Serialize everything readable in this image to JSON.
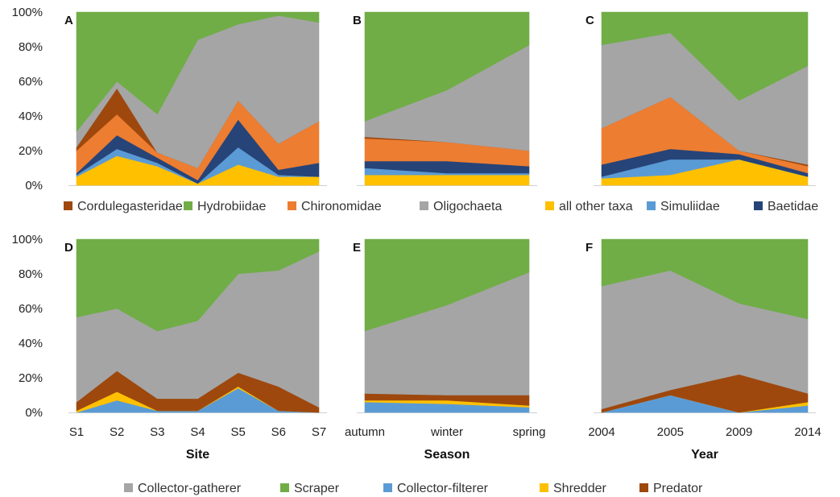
{
  "figure": {
    "y_ticks": [
      "0%",
      "20%",
      "40%",
      "60%",
      "80%",
      "100%"
    ],
    "x_axis_titles": [
      "Site",
      "Season",
      "Year"
    ]
  },
  "legends": {
    "taxa": [
      {
        "name": "Cordulegasteridae",
        "color": "#9e480e"
      },
      {
        "name": "Hydrobiidae",
        "color": "#70ad47"
      },
      {
        "name": "Chironomidae",
        "color": "#ed7d31"
      },
      {
        "name": "Oligochaeta",
        "color": "#a5a5a5"
      },
      {
        "name": "all other taxa",
        "color": "#ffc000"
      },
      {
        "name": "Simuliidae",
        "color": "#5b9bd5"
      },
      {
        "name": "Baetidae",
        "color": "#264478"
      }
    ],
    "feeding": [
      {
        "name": "Collector-gatherer",
        "color": "#a5a5a5"
      },
      {
        "name": "Scraper",
        "color": "#70ad47"
      },
      {
        "name": "Collector-filterer",
        "color": "#5b9bd5"
      },
      {
        "name": "Shredder",
        "color": "#ffc000"
      },
      {
        "name": "Predator",
        "color": "#9e480e"
      }
    ]
  },
  "chart_data": [
    {
      "panel": "A",
      "type": "area",
      "stacking": "percent",
      "categories": [
        "S1",
        "S2",
        "S3",
        "S4",
        "S5",
        "S6",
        "S7"
      ],
      "ylim": [
        0,
        100
      ],
      "series": [
        {
          "name": "all other taxa",
          "color": "#ffc000",
          "values": [
            5,
            17,
            11,
            1,
            12,
            5,
            5
          ]
        },
        {
          "name": "Simuliidae",
          "color": "#5b9bd5",
          "values": [
            1,
            4,
            2,
            0,
            10,
            1,
            0
          ]
        },
        {
          "name": "Baetidae",
          "color": "#264478",
          "values": [
            1,
            8,
            3,
            2,
            16,
            3,
            8
          ]
        },
        {
          "name": "Chironomidae",
          "color": "#ed7d31",
          "values": [
            13,
            12,
            3,
            7,
            11,
            15,
            24
          ]
        },
        {
          "name": "Cordulegasteridae",
          "color": "#9e480e",
          "values": [
            2,
            15,
            0,
            0,
            0,
            0,
            0
          ]
        },
        {
          "name": "Oligochaeta",
          "color": "#a5a5a5",
          "values": [
            9,
            4,
            22,
            74,
            44,
            74,
            57
          ]
        },
        {
          "name": "Hydrobiidae",
          "color": "#70ad47",
          "values": [
            69,
            40,
            59,
            16,
            7,
            2,
            6
          ]
        }
      ]
    },
    {
      "panel": "B",
      "type": "area",
      "stacking": "percent",
      "categories": [
        "autumn",
        "winter",
        "spring"
      ],
      "ylim": [
        0,
        100
      ],
      "series": [
        {
          "name": "all other taxa",
          "color": "#ffc000",
          "values": [
            6,
            6,
            6
          ]
        },
        {
          "name": "Simuliidae",
          "color": "#5b9bd5",
          "values": [
            4,
            1,
            1
          ]
        },
        {
          "name": "Baetidae",
          "color": "#264478",
          "values": [
            4,
            7,
            4
          ]
        },
        {
          "name": "Chironomidae",
          "color": "#ed7d31",
          "values": [
            13,
            11,
            9
          ]
        },
        {
          "name": "Cordulegasteridae",
          "color": "#9e480e",
          "values": [
            1,
            0,
            0
          ]
        },
        {
          "name": "Oligochaeta",
          "color": "#a5a5a5",
          "values": [
            9,
            30,
            61
          ]
        },
        {
          "name": "Hydrobiidae",
          "color": "#70ad47",
          "values": [
            63,
            45,
            19
          ]
        }
      ]
    },
    {
      "panel": "C",
      "type": "area",
      "stacking": "percent",
      "categories": [
        "2004",
        "2005",
        "2009",
        "2014"
      ],
      "ylim": [
        0,
        100
      ],
      "series": [
        {
          "name": "all other taxa",
          "color": "#ffc000",
          "values": [
            4,
            6,
            15,
            5
          ]
        },
        {
          "name": "Simuliidae",
          "color": "#5b9bd5",
          "values": [
            1,
            9,
            0,
            0
          ]
        },
        {
          "name": "Baetidae",
          "color": "#264478",
          "values": [
            7,
            6,
            3,
            2
          ]
        },
        {
          "name": "Chironomidae",
          "color": "#ed7d31",
          "values": [
            21,
            30,
            2,
            4
          ]
        },
        {
          "name": "Cordulegasteridae",
          "color": "#9e480e",
          "values": [
            0,
            0,
            0,
            1
          ]
        },
        {
          "name": "Oligochaeta",
          "color": "#a5a5a5",
          "values": [
            48,
            37,
            29,
            57
          ]
        },
        {
          "name": "Hydrobiidae",
          "color": "#70ad47",
          "values": [
            19,
            12,
            51,
            31
          ]
        }
      ]
    },
    {
      "panel": "D",
      "type": "area",
      "stacking": "percent",
      "categories": [
        "S1",
        "S2",
        "S3",
        "S4",
        "S5",
        "S6",
        "S7"
      ],
      "xlabel": "Site",
      "ylim": [
        0,
        100
      ],
      "series": [
        {
          "name": "Collector-filterer",
          "color": "#5b9bd5",
          "values": [
            0,
            7,
            1,
            1,
            14,
            1,
            0
          ]
        },
        {
          "name": "Shredder",
          "color": "#ffc000",
          "values": [
            1,
            5,
            0,
            0,
            1,
            0,
            0
          ]
        },
        {
          "name": "Predator",
          "color": "#9e480e",
          "values": [
            5,
            12,
            7,
            7,
            8,
            14,
            3
          ]
        },
        {
          "name": "Collector-gatherer",
          "color": "#a5a5a5",
          "values": [
            49,
            36,
            39,
            45,
            57,
            67,
            90
          ]
        },
        {
          "name": "Scraper",
          "color": "#70ad47",
          "values": [
            45,
            40,
            53,
            47,
            20,
            18,
            7
          ]
        }
      ]
    },
    {
      "panel": "E",
      "type": "area",
      "stacking": "percent",
      "categories": [
        "autumn",
        "winter",
        "spring"
      ],
      "xlabel": "Season",
      "ylim": [
        0,
        100
      ],
      "series": [
        {
          "name": "Collector-filterer",
          "color": "#5b9bd5",
          "values": [
            6,
            5,
            3
          ]
        },
        {
          "name": "Shredder",
          "color": "#ffc000",
          "values": [
            1,
            2,
            1
          ]
        },
        {
          "name": "Predator",
          "color": "#9e480e",
          "values": [
            4,
            3,
            6
          ]
        },
        {
          "name": "Collector-gatherer",
          "color": "#a5a5a5",
          "values": [
            36,
            52,
            71
          ]
        },
        {
          "name": "Scraper",
          "color": "#70ad47",
          "values": [
            53,
            38,
            19
          ]
        }
      ]
    },
    {
      "panel": "F",
      "type": "area",
      "stacking": "percent",
      "categories": [
        "2004",
        "2005",
        "2009",
        "2014"
      ],
      "xlabel": "Year",
      "ylim": [
        0,
        100
      ],
      "series": [
        {
          "name": "Collector-filterer",
          "color": "#5b9bd5",
          "values": [
            0,
            10,
            0,
            4
          ]
        },
        {
          "name": "Shredder",
          "color": "#ffc000",
          "values": [
            0,
            0,
            0,
            2
          ]
        },
        {
          "name": "Predator",
          "color": "#9e480e",
          "values": [
            2,
            3,
            22,
            5
          ]
        },
        {
          "name": "Collector-gatherer",
          "color": "#a5a5a5",
          "values": [
            71,
            69,
            41,
            43
          ]
        },
        {
          "name": "Scraper",
          "color": "#70ad47",
          "values": [
            27,
            18,
            37,
            46
          ]
        }
      ]
    }
  ]
}
